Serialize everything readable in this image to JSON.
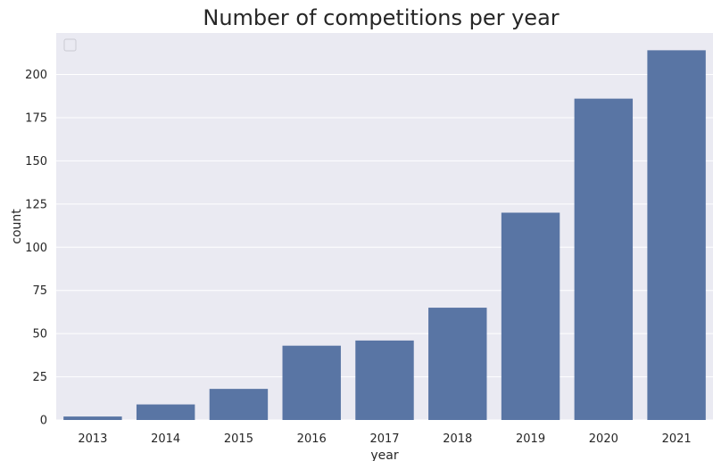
{
  "chart_data": {
    "type": "bar",
    "title": "Number of competitions per year",
    "xlabel": "year",
    "ylabel": "count",
    "categories": [
      "2013",
      "2014",
      "2015",
      "2016",
      "2017",
      "2018",
      "2019",
      "2020",
      "2021"
    ],
    "values": [
      2,
      9,
      18,
      43,
      46,
      65,
      120,
      186,
      214
    ],
    "ylim": [
      0,
      224
    ],
    "yticks": [
      0,
      25,
      50,
      75,
      100,
      125,
      150,
      175,
      200
    ],
    "grid": true,
    "legend": "top-left (empty)",
    "colors": {
      "bar": "#5975a4",
      "plot_background": "#eaeaf2",
      "grid": "#ffffff",
      "text": "#262626"
    }
  }
}
